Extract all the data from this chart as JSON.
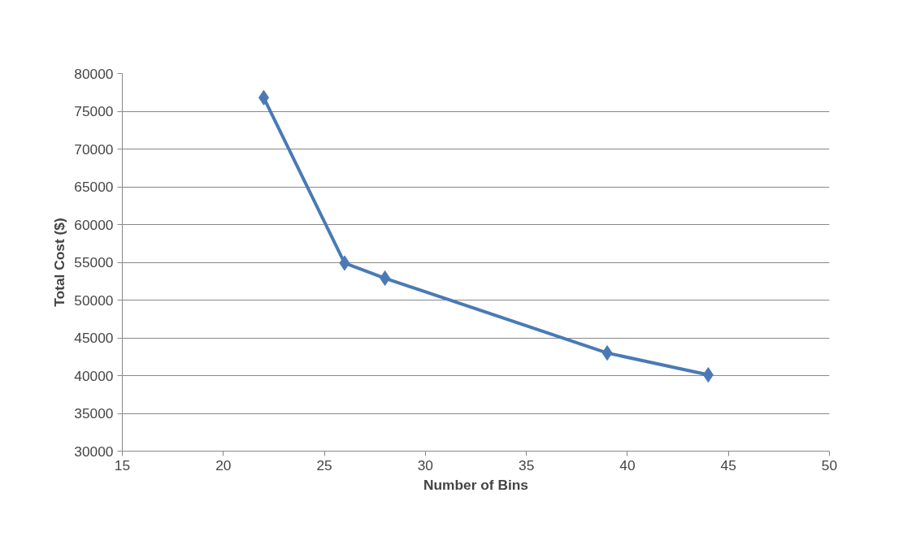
{
  "chart_data": {
    "type": "line",
    "xlabel": "Number of Bins",
    "ylabel": "Total Cost ($)",
    "x": [
      22,
      26,
      28,
      39,
      44
    ],
    "series": [
      {
        "color": "#4a7ab5",
        "values": [
          76800,
          54900,
          52900,
          43000,
          40100
        ]
      }
    ],
    "xlim": [
      15,
      50
    ],
    "xticks": [
      15,
      20,
      25,
      30,
      35,
      40,
      45,
      50
    ],
    "ylim": [
      30000,
      80000
    ],
    "yticks": [
      30000,
      35000,
      40000,
      45000,
      50000,
      55000,
      60000,
      65000,
      70000,
      75000,
      80000
    ],
    "grid": "y",
    "marker": "diamond",
    "line_style": "solid"
  }
}
